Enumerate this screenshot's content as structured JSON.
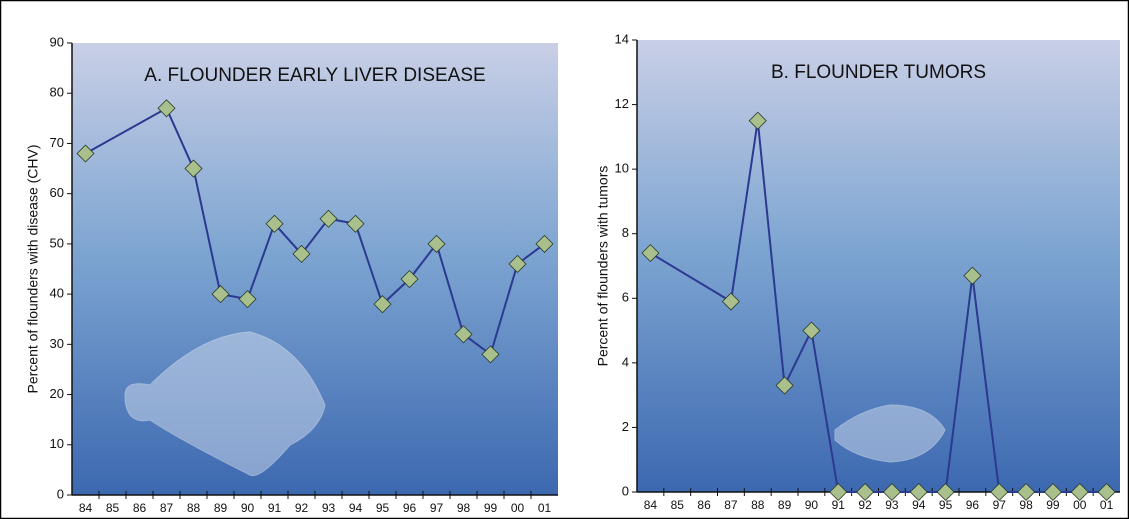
{
  "chart_data": [
    {
      "type": "line",
      "title": "A. FLOUNDER EARLY LIVER DISEASE",
      "y_label": "Percent of flounders with disease (CHV)",
      "categories": [
        "84",
        "85",
        "86",
        "87",
        "88",
        "89",
        "90",
        "91",
        "92",
        "93",
        "94",
        "95",
        "96",
        "97",
        "98",
        "99",
        "00",
        "01"
      ],
      "x": [
        "84",
        "87",
        "88",
        "89",
        "90",
        "91",
        "92",
        "93",
        "94",
        "95",
        "96",
        "97",
        "98",
        "99",
        "00",
        "01"
      ],
      "values": [
        68,
        77,
        65,
        40,
        39,
        54,
        48,
        55,
        54,
        38,
        43,
        50,
        32,
        28,
        46,
        50
      ],
      "color": "#2b3990",
      "marker_color": "#a9bf8c",
      "ylim": [
        0,
        90
      ],
      "yticks": [
        0,
        10,
        20,
        30,
        40,
        50,
        60,
        70,
        80,
        90
      ]
    },
    {
      "type": "line",
      "title": "B. FLOUNDER TUMORS",
      "y_label": "Percent of flounders with tumors",
      "categories": [
        "84",
        "85",
        "86",
        "87",
        "88",
        "89",
        "90",
        "91",
        "92",
        "93",
        "94",
        "95",
        "96",
        "97",
        "98",
        "99",
        "00",
        "01"
      ],
      "x": [
        "84",
        "87",
        "88",
        "89",
        "90",
        "91",
        "92",
        "93",
        "94",
        "95",
        "96",
        "97",
        "98",
        "99",
        "00",
        "01"
      ],
      "values": [
        7.4,
        5.9,
        11.5,
        3.3,
        5.0,
        0,
        0,
        0,
        0,
        0,
        6.7,
        0,
        0,
        0,
        0,
        0
      ],
      "color": "#2b3990",
      "marker_color": "#a9bf8c",
      "ylim": [
        0,
        14
      ],
      "yticks": [
        0,
        2,
        4,
        6,
        8,
        10,
        12,
        14
      ]
    }
  ]
}
